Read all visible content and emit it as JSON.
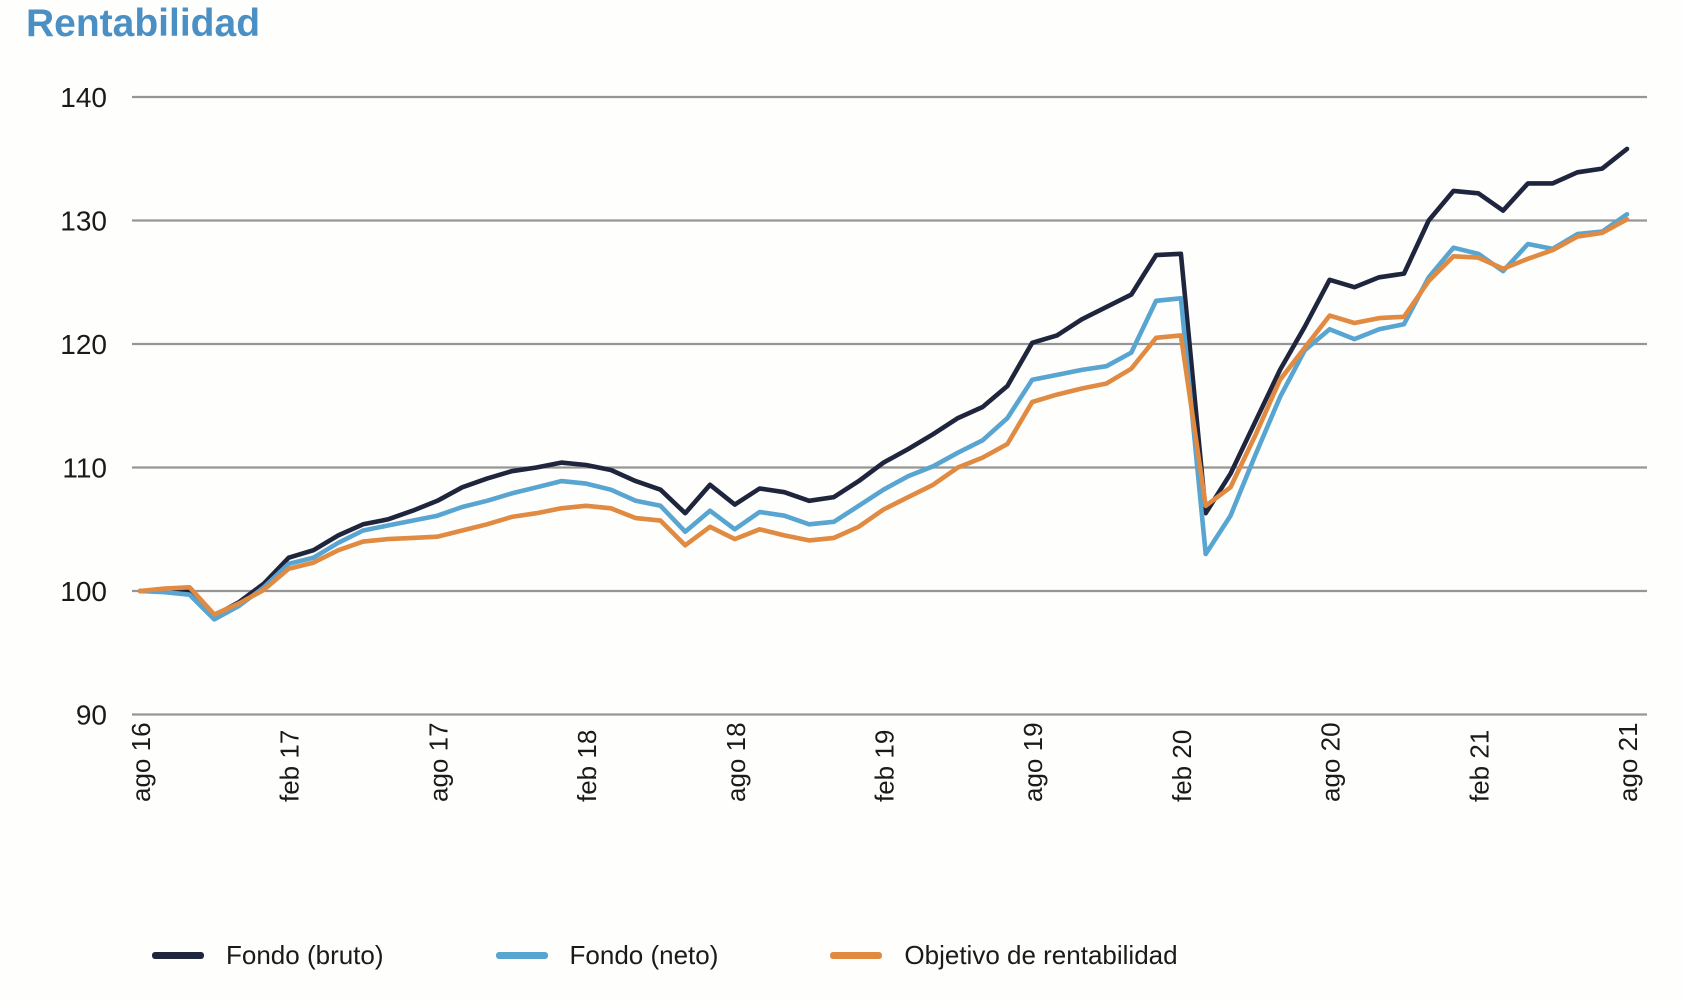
{
  "page": {
    "title": "Rentabilidad",
    "title_color": "#4a90c5",
    "background": "#fefefc"
  },
  "axis": {
    "grid_color": "#969696",
    "text_color": "#1a1a1a"
  },
  "chart_data": {
    "type": "line",
    "title": "Rentabilidad",
    "xlabel": "",
    "ylabel": "",
    "ylim": [
      90,
      140
    ],
    "yticks": [
      90,
      100,
      110,
      120,
      130,
      140
    ],
    "grid": "horizontal",
    "legend_position": "bottom",
    "tick_every": 6,
    "tick_labels": [
      "ago 16",
      "feb 17",
      "ago 17",
      "feb 18",
      "ago 18",
      "feb 19",
      "ago 19",
      "feb 20",
      "ago 20",
      "feb 21",
      "ago 21"
    ],
    "x": [
      "ago 16",
      "sep 16",
      "oct 16",
      "nov 16",
      "dic 16",
      "ene 17",
      "feb 17",
      "mar 17",
      "abr 17",
      "may 17",
      "jun 17",
      "jul 17",
      "ago 17",
      "sep 17",
      "oct 17",
      "nov 17",
      "dic 17",
      "ene 18",
      "feb 18",
      "mar 18",
      "abr 18",
      "may 18",
      "jun 18",
      "jul 18",
      "ago 18",
      "sep 18",
      "oct 18",
      "nov 18",
      "dic 18",
      "ene 19",
      "feb 19",
      "mar 19",
      "abr 19",
      "may 19",
      "jun 19",
      "jul 19",
      "ago 19",
      "sep 19",
      "oct 19",
      "nov 19",
      "dic 19",
      "ene 20",
      "feb 20",
      "mar 20",
      "abr 20",
      "may 20",
      "jun 20",
      "jul 20",
      "ago 20",
      "sep 20",
      "oct 20",
      "nov 20",
      "dic 20",
      "ene 21",
      "feb 21",
      "mar 21",
      "abr 21",
      "may 21",
      "jun 21",
      "jul 21",
      "ago 21"
    ],
    "series": [
      {
        "name": "Fondo (bruto)",
        "color": "#20253e",
        "values": [
          100.0,
          100.0,
          100.0,
          98.0,
          99.1,
          100.6,
          102.7,
          103.3,
          104.5,
          105.4,
          105.8,
          106.5,
          107.3,
          108.4,
          109.1,
          109.7,
          110.0,
          110.4,
          110.2,
          109.8,
          108.9,
          108.2,
          106.3,
          108.6,
          107.0,
          108.3,
          108.0,
          107.3,
          107.6,
          108.9,
          110.4,
          111.5,
          112.7,
          114.0,
          114.9,
          116.6,
          120.1,
          120.7,
          122.0,
          123.0,
          124.0,
          127.2,
          127.3,
          106.3,
          109.5,
          113.7,
          117.9,
          121.4,
          125.2,
          124.6,
          125.4,
          125.7,
          130.0,
          132.4,
          132.2,
          130.8,
          133.0,
          133.0,
          133.9,
          134.2,
          135.8
        ]
      },
      {
        "name": "Fondo (neto)",
        "color": "#58a5d2",
        "values": [
          100.0,
          99.9,
          99.7,
          97.7,
          98.8,
          100.3,
          102.2,
          102.7,
          103.9,
          104.9,
          105.3,
          105.7,
          106.1,
          106.8,
          107.3,
          107.9,
          108.4,
          108.9,
          108.7,
          108.2,
          107.3,
          106.9,
          104.8,
          106.5,
          105.0,
          106.4,
          106.1,
          105.4,
          105.6,
          106.9,
          108.2,
          109.3,
          110.1,
          111.2,
          112.2,
          114.0,
          117.1,
          117.5,
          117.9,
          118.2,
          119.3,
          123.5,
          123.7,
          103.0,
          106.1,
          111.0,
          115.7,
          119.5,
          121.2,
          120.4,
          121.2,
          121.6,
          125.4,
          127.8,
          127.3,
          125.9,
          128.1,
          127.7,
          128.9,
          129.1,
          130.5
        ]
      },
      {
        "name": "Objetivo de rentabilidad",
        "color": "#e08a42",
        "values": [
          100.0,
          100.2,
          100.3,
          98.1,
          99.0,
          100.1,
          101.8,
          102.3,
          103.3,
          104.0,
          104.2,
          104.3,
          104.4,
          104.9,
          105.4,
          106.0,
          106.3,
          106.7,
          106.9,
          106.7,
          105.9,
          105.7,
          103.7,
          105.2,
          104.2,
          105.0,
          104.5,
          104.1,
          104.3,
          105.2,
          106.6,
          107.6,
          108.6,
          110.0,
          110.8,
          111.9,
          115.3,
          115.9,
          116.4,
          116.8,
          118.0,
          120.5,
          120.7,
          106.9,
          108.4,
          112.6,
          117.1,
          119.7,
          122.3,
          121.7,
          122.1,
          122.2,
          125.1,
          127.1,
          127.0,
          126.1,
          126.9,
          127.6,
          128.7,
          129.0,
          130.1
        ]
      }
    ]
  }
}
